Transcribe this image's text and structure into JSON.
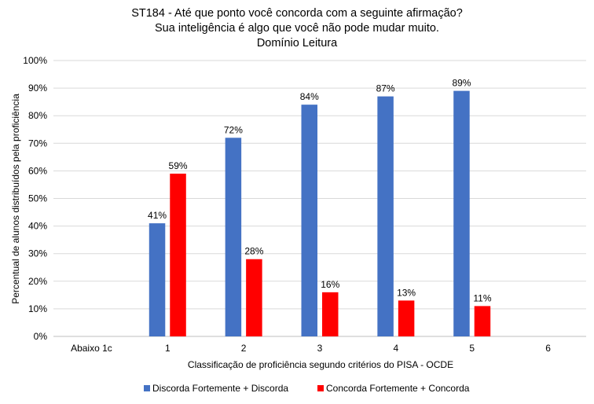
{
  "chart_data": {
    "type": "bar",
    "title": [
      "ST184 - Até que ponto você concorda com a seguinte afirmação?",
      "Sua inteligência é algo que você não pode mudar muito.",
      "Domínio Leitura"
    ],
    "xlabel": "Classificação de proficiência segundo critérios do PISA - OCDE",
    "ylabel": "Percentual de alunos distribuídos pela proficiência",
    "categories": [
      "Abaixo 1c",
      "1",
      "2",
      "3",
      "4",
      "5",
      "6"
    ],
    "ylim": [
      0,
      100
    ],
    "yticks": [
      0,
      10,
      20,
      30,
      40,
      50,
      60,
      70,
      80,
      90,
      100
    ],
    "ytick_format": "%",
    "grid": true,
    "legend_position": "bottom",
    "series": [
      {
        "name": "Discorda Fortemente + Discorda",
        "color": "#4472C4",
        "values": [
          null,
          41,
          72,
          84,
          87,
          89,
          null
        ]
      },
      {
        "name": "Concorda Fortemente + Concorda",
        "color": "#FF0000",
        "values": [
          null,
          59,
          28,
          16,
          13,
          11,
          null
        ]
      }
    ]
  }
}
